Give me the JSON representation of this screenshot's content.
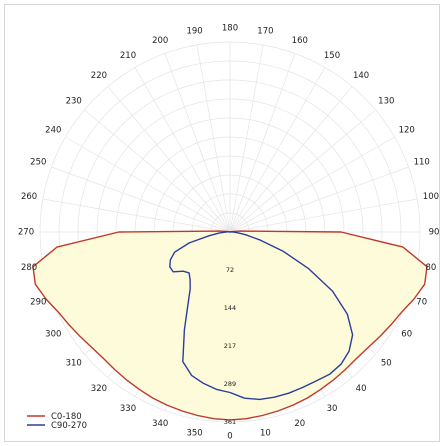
{
  "chart_data": {
    "type": "polar",
    "title": "",
    "angle_unit": "deg",
    "angle_ticks": [
      0,
      10,
      20,
      30,
      40,
      50,
      60,
      70,
      80,
      90,
      100,
      110,
      120,
      130,
      140,
      150,
      160,
      170,
      180,
      190,
      200,
      210,
      220,
      230,
      240,
      250,
      260,
      270,
      280,
      290,
      300,
      310,
      320,
      330,
      340,
      350
    ],
    "radial_ticks": [
      72,
      144,
      217,
      289,
      361
    ],
    "r_max": 361,
    "grid": true,
    "legend_position": "bottom-left",
    "series": [
      {
        "name": "C0-180",
        "color": "#c0392b",
        "fill": "#fdfbd8",
        "points": [
          [
            0,
            357
          ],
          [
            5,
            356
          ],
          [
            10,
            354
          ],
          [
            15,
            352
          ],
          [
            20,
            350
          ],
          [
            25,
            348
          ],
          [
            30,
            345
          ],
          [
            35,
            343
          ],
          [
            40,
            341
          ],
          [
            45,
            340
          ],
          [
            50,
            342
          ],
          [
            55,
            347
          ],
          [
            60,
            353
          ],
          [
            65,
            360
          ],
          [
            70,
            372
          ],
          [
            75,
            383
          ],
          [
            80,
            380
          ],
          [
            85,
            330
          ],
          [
            90,
            211
          ],
          [
            95,
            20
          ],
          [
            100,
            4
          ],
          [
            180,
            0
          ],
          [
            260,
            4
          ],
          [
            265,
            20
          ],
          [
            270,
            211
          ],
          [
            275,
            330
          ],
          [
            280,
            380
          ],
          [
            285,
            383
          ],
          [
            290,
            372
          ],
          [
            295,
            360
          ],
          [
            300,
            353
          ],
          [
            305,
            347
          ],
          [
            310,
            342
          ],
          [
            315,
            340
          ],
          [
            320,
            341
          ],
          [
            325,
            343
          ],
          [
            330,
            345
          ],
          [
            335,
            348
          ],
          [
            340,
            350
          ],
          [
            345,
            352
          ],
          [
            350,
            354
          ],
          [
            355,
            356
          ]
        ]
      },
      {
        "name": "C90-270",
        "color": "#2c3e9c",
        "fill": "none",
        "points": [
          [
            0,
            305
          ],
          [
            5,
            317
          ],
          [
            10,
            323
          ],
          [
            15,
            325
          ],
          [
            20,
            326
          ],
          [
            25,
            326
          ],
          [
            30,
            327
          ],
          [
            35,
            330
          ],
          [
            40,
            328
          ],
          [
            45,
            320
          ],
          [
            50,
            304
          ],
          [
            55,
            272
          ],
          [
            60,
            225
          ],
          [
            65,
            165
          ],
          [
            70,
            108
          ],
          [
            75,
            60
          ],
          [
            80,
            30
          ],
          [
            85,
            13
          ],
          [
            90,
            6
          ],
          [
            95,
            3
          ],
          [
            100,
            2
          ],
          [
            180,
            0
          ],
          [
            260,
            2
          ],
          [
            265,
            4
          ],
          [
            270,
            8
          ],
          [
            275,
            20
          ],
          [
            280,
            40
          ],
          [
            285,
            80
          ],
          [
            290,
            112
          ],
          [
            295,
            125
          ],
          [
            300,
            132
          ],
          [
            305,
            132
          ],
          [
            310,
            116
          ],
          [
            315,
            110
          ],
          [
            320,
            118
          ],
          [
            325,
            132
          ],
          [
            330,
            160
          ],
          [
            335,
            205
          ],
          [
            340,
            262
          ],
          [
            345,
            282
          ],
          [
            350,
            292
          ],
          [
            355,
            300
          ]
        ]
      }
    ]
  }
}
